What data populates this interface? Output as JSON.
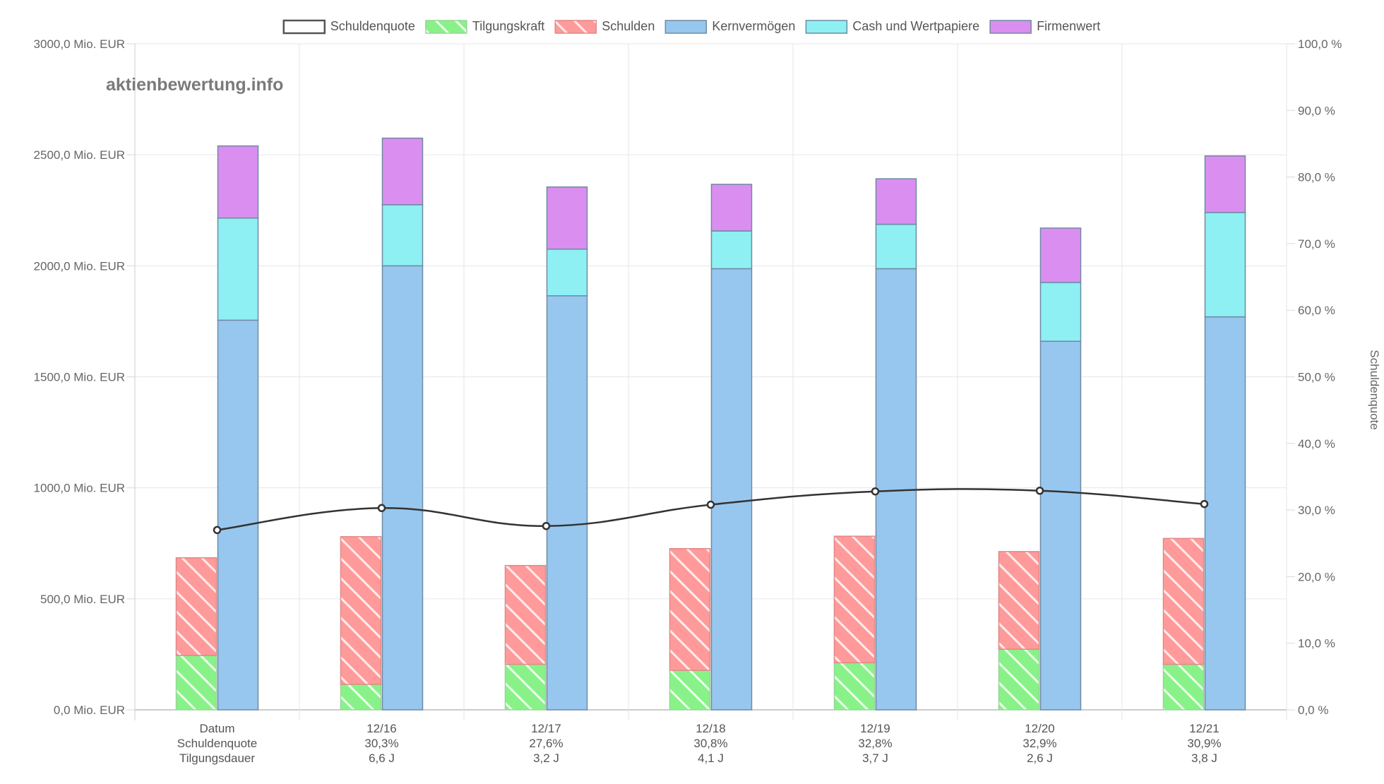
{
  "chart_data": {
    "type": "bar",
    "watermark": "aktienbewertung.info",
    "categories": [
      "Datum",
      "12/16",
      "12/17",
      "12/18",
      "12/19",
      "12/20",
      "12/21"
    ],
    "row_labels": [
      "Datum",
      "Schuldenquote",
      "Tilgungsdauer"
    ],
    "quote_labels": [
      "30,3%",
      "27,6%",
      "30,8%",
      "32,8%",
      "32,9%",
      "30,9%"
    ],
    "duration_labels": [
      "6,6 J",
      "3,2 J",
      "4,1 J",
      "3,7 J",
      "2,6 J",
      "3,8 J"
    ],
    "y_left": {
      "min": 0,
      "max": 3000,
      "step": 500,
      "ticks": [
        "0,0 Mio. EUR",
        "500,0 Mio. EUR",
        "1000,0 Mio. EUR",
        "1500,0 Mio. EUR",
        "2000,0 Mio. EUR",
        "2500,0 Mio. EUR",
        "3000,0 Mio. EUR"
      ]
    },
    "y_right": {
      "min": 0,
      "max": 100,
      "step": 10,
      "title": "Schuldenquote",
      "ticks": [
        "0,0 %",
        "10,0 %",
        "20,0 %",
        "30,0 %",
        "40,0 %",
        "50,0 %",
        "60,0 %",
        "70,0 %",
        "80,0 %",
        "90,0 %",
        "100,0 %"
      ]
    },
    "legend": [
      {
        "name": "Schuldenquote",
        "color": "#ffffff",
        "border": "#555555",
        "pattern": false
      },
      {
        "name": "Tilgungskraft",
        "color": "#88f288",
        "border": "#9ad49a",
        "pattern": true
      },
      {
        "name": "Schulden",
        "color": "#ff9a9a",
        "border": "#e08888",
        "pattern": true
      },
      {
        "name": "Kernvermögen",
        "color": "#97c7ee",
        "border": "#6f8aa3",
        "pattern": false
      },
      {
        "name": "Cash und Wertpapiere",
        "color": "#8ef0f2",
        "border": "#6f8aa3",
        "pattern": false
      },
      {
        "name": "Firmenwert",
        "color": "#da8ff0",
        "border": "#6f8aa3",
        "pattern": false
      }
    ],
    "series": [
      {
        "name": "Tilgungskraft",
        "stack": "debt",
        "values": [
          245,
          115,
          205,
          178,
          212,
          273,
          205
        ]
      },
      {
        "name": "Schulden",
        "stack": "debt",
        "values": [
          440,
          665,
          445,
          548,
          570,
          440,
          567
        ]
      },
      {
        "name": "Kernvermögen",
        "stack": "assets",
        "values": [
          1755,
          2000,
          1865,
          1987,
          1987,
          1660,
          1770
        ]
      },
      {
        "name": "Cash und Wertpapiere",
        "stack": "assets",
        "values": [
          460,
          275,
          210,
          170,
          200,
          265,
          470
        ]
      },
      {
        "name": "Firmenwert",
        "stack": "assets",
        "values": [
          325,
          300,
          280,
          210,
          205,
          245,
          255
        ]
      },
      {
        "name": "Schuldenquote",
        "type": "line",
        "axis": "right",
        "values": [
          27.0,
          30.3,
          27.6,
          30.8,
          32.8,
          32.9,
          30.9
        ]
      }
    ]
  }
}
